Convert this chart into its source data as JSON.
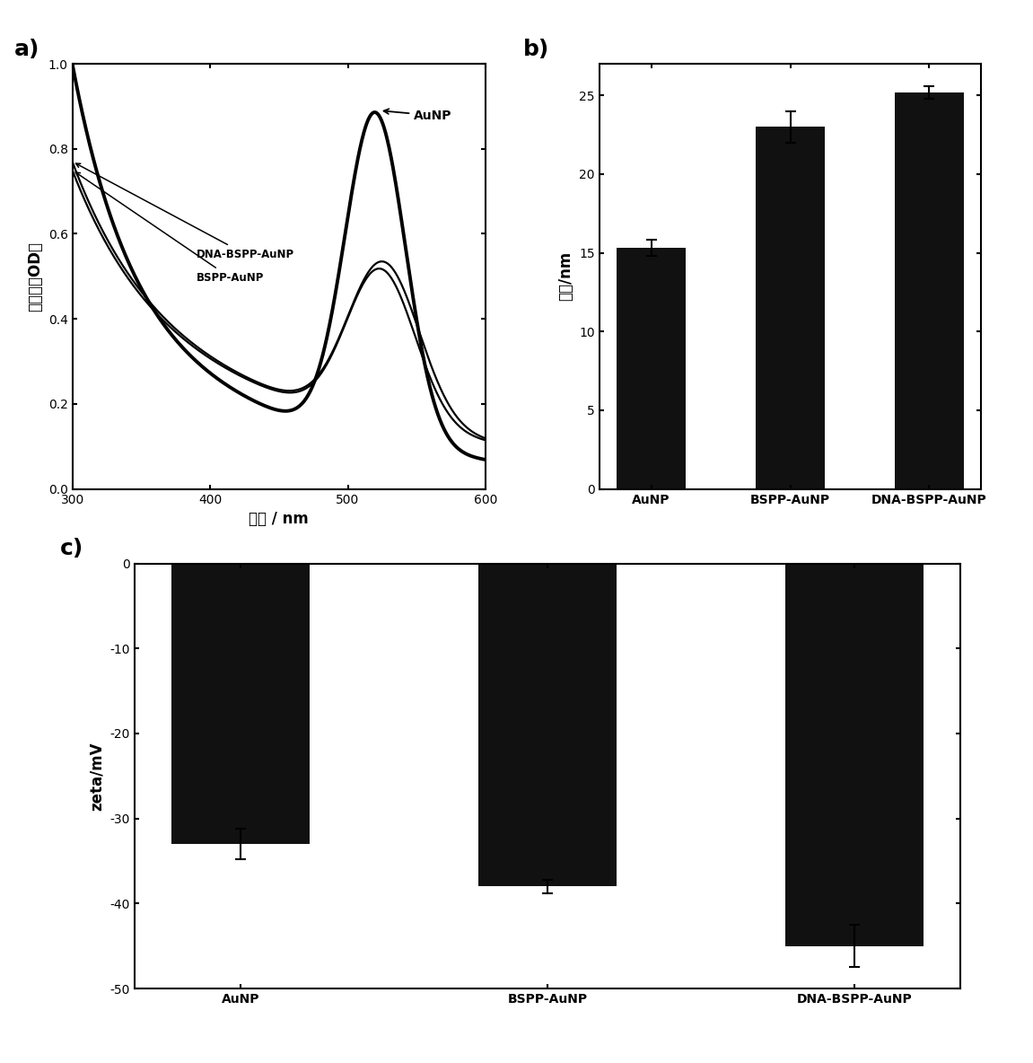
{
  "panel_a": {
    "xlabel": "波长 / nm",
    "ylabel": "吸光度（OD）",
    "xlim": [
      300,
      600
    ],
    "ylim": [
      0.0,
      1.0
    ],
    "xticks": [
      300,
      400,
      500,
      600
    ],
    "yticks": [
      0.0,
      0.2,
      0.4,
      0.6,
      0.8,
      1.0
    ],
    "AuNP_label": "AuNP",
    "DNA_label": "DNA-BSPP-AuNP",
    "BSPP_label": "BSPP-AuNP"
  },
  "panel_b": {
    "categories": [
      "AuNP",
      "BSPP-AuNP",
      "DNA-BSPP-AuNP"
    ],
    "values": [
      15.3,
      23.0,
      25.2
    ],
    "errors": [
      0.5,
      1.0,
      0.4
    ],
    "ylabel": "粒径/nm",
    "ylim": [
      0,
      27
    ],
    "yticks": [
      0,
      5,
      10,
      15,
      20,
      25
    ],
    "bar_color": "#111111"
  },
  "panel_c": {
    "categories": [
      "AuNP",
      "BSPP-AuNP",
      "DNA-BSPP-AuNP"
    ],
    "values": [
      -33.0,
      -38.0,
      -45.0
    ],
    "errors": [
      1.8,
      0.8,
      2.5
    ],
    "ylabel": "zeta/mV",
    "ylim_top": -50,
    "ylim_bottom": 0,
    "yticks": [
      0,
      -10,
      -20,
      -30,
      -40,
      -50
    ],
    "bar_color": "#111111"
  },
  "panel_labels": [
    "a)",
    "b)",
    "c)"
  ],
  "background_color": "#ffffff"
}
